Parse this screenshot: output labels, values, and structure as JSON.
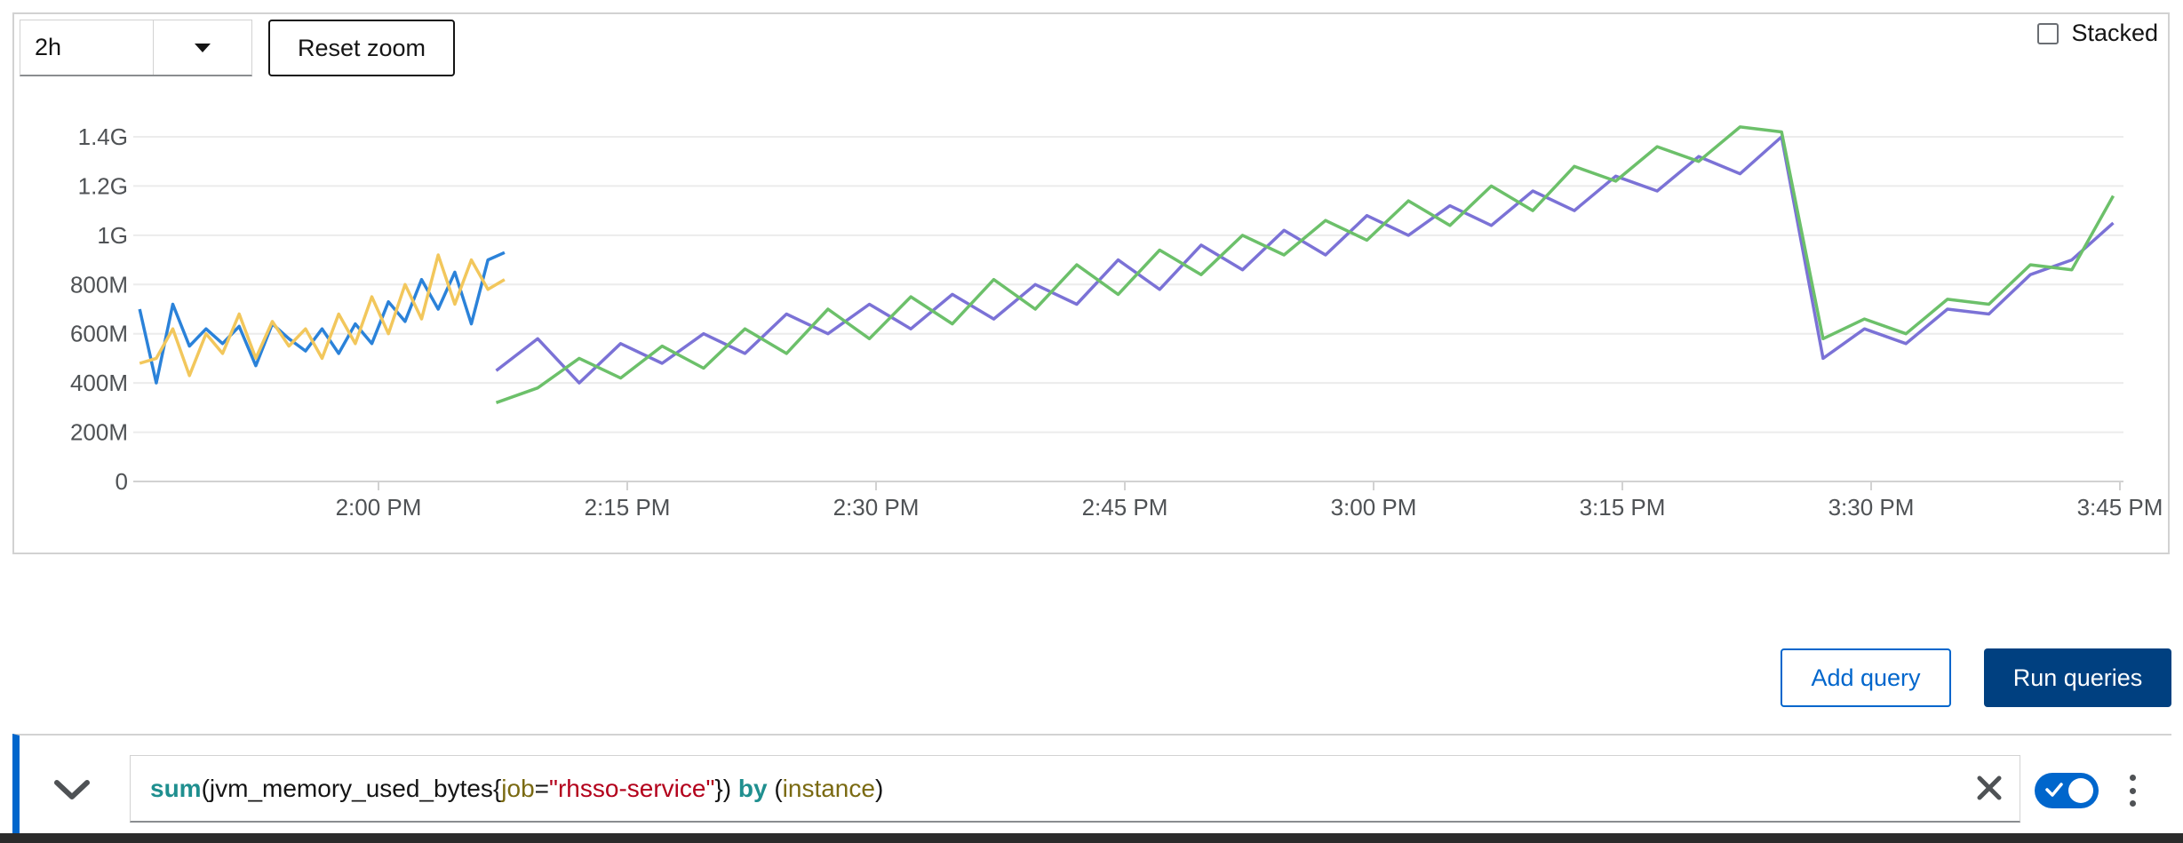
{
  "toolbar": {
    "range_value": "2h",
    "reset_zoom_label": "Reset zoom",
    "stacked_label": "Stacked",
    "stacked_checked": false
  },
  "actions": {
    "add_query_label": "Add query",
    "run_queries_label": "Run queries"
  },
  "query": {
    "fn": "sum",
    "open_paren": "(",
    "metric": "jvm_memory_used_bytes",
    "brace_open": "{",
    "label_key": "job",
    "equals": "=",
    "label_value": "\"rhsso-service\"",
    "brace_close": "})",
    "by_kw": " by ",
    "group_open": "(",
    "group_label": "instance",
    "group_close": ")",
    "enabled": true
  },
  "chart_data": {
    "type": "line",
    "x_unit": "clock time",
    "xlim": [
      "1:50 PM",
      "3:45 PM"
    ],
    "ylim": [
      0,
      1.5
    ],
    "y_unit": "G",
    "grid": true,
    "y_ticks": [
      {
        "value": 0,
        "label": "0"
      },
      {
        "value": 0.2,
        "label": "200M"
      },
      {
        "value": 0.4,
        "label": "400M"
      },
      {
        "value": 0.6,
        "label": "600M"
      },
      {
        "value": 0.8,
        "label": "800M"
      },
      {
        "value": 1.0,
        "label": "1G"
      },
      {
        "value": 1.2,
        "label": "1.2G"
      },
      {
        "value": 1.4,
        "label": "1.4G"
      }
    ],
    "x_ticks": [
      {
        "min": 0,
        "label": "2:00 PM"
      },
      {
        "min": 15,
        "label": "2:15 PM"
      },
      {
        "min": 30,
        "label": "2:30 PM"
      },
      {
        "min": 45,
        "label": "2:45 PM"
      },
      {
        "min": 60,
        "label": "3:00 PM"
      },
      {
        "min": 75,
        "label": "3:15 PM"
      },
      {
        "min": 90,
        "label": "3:30 PM"
      },
      {
        "min": 105,
        "label": "3:45 PM"
      }
    ],
    "series": [
      {
        "color": "#2b82d9",
        "x": [
          -14.4,
          -13.4,
          -12.4,
          -11.4,
          -10.4,
          -9.4,
          -8.4,
          -7.4,
          -6.4,
          -5.4,
          -4.4,
          -3.4,
          -2.4,
          -1.4,
          -0.4,
          0.6,
          1.6,
          2.6,
          3.6,
          4.6,
          5.6,
          6.6,
          7.6
        ],
        "y": [
          0.7,
          0.4,
          0.72,
          0.55,
          0.62,
          0.56,
          0.63,
          0.47,
          0.64,
          0.58,
          0.53,
          0.62,
          0.52,
          0.64,
          0.56,
          0.73,
          0.65,
          0.82,
          0.7,
          0.85,
          0.64,
          0.9,
          0.93
        ]
      },
      {
        "color": "#f2c75c",
        "x": [
          -14.4,
          -13.4,
          -12.4,
          -11.4,
          -10.4,
          -9.4,
          -8.4,
          -7.4,
          -6.4,
          -5.4,
          -4.4,
          -3.4,
          -2.4,
          -1.4,
          -0.4,
          0.6,
          1.6,
          2.6,
          3.6,
          4.6,
          5.6,
          6.6,
          7.6
        ],
        "y": [
          0.48,
          0.5,
          0.62,
          0.43,
          0.6,
          0.52,
          0.68,
          0.5,
          0.65,
          0.55,
          0.62,
          0.5,
          0.68,
          0.56,
          0.75,
          0.6,
          0.8,
          0.66,
          0.92,
          0.72,
          0.9,
          0.78,
          0.82
        ]
      },
      {
        "color": "#7b72d6",
        "x": [
          7.1,
          9.6,
          12.1,
          14.6,
          17.1,
          19.6,
          22.1,
          24.6,
          27.1,
          29.6,
          32.1,
          34.6,
          37.1,
          39.6,
          42.1,
          44.6,
          47.1,
          49.6,
          52.1,
          54.6,
          57.1,
          59.6,
          62.1,
          64.6,
          67.1,
          69.6,
          72.1,
          74.6,
          77.1,
          79.6,
          82.1,
          84.6,
          87.1,
          89.6,
          92.1,
          94.6,
          97.1,
          99.6,
          102.1,
          104.6
        ],
        "y": [
          0.45,
          0.58,
          0.4,
          0.56,
          0.48,
          0.6,
          0.52,
          0.68,
          0.6,
          0.72,
          0.62,
          0.76,
          0.66,
          0.8,
          0.72,
          0.9,
          0.78,
          0.96,
          0.86,
          1.02,
          0.92,
          1.08,
          1.0,
          1.12,
          1.04,
          1.18,
          1.1,
          1.24,
          1.18,
          1.32,
          1.25,
          1.4,
          0.5,
          0.62,
          0.56,
          0.7,
          0.68,
          0.84,
          0.9,
          1.05
        ]
      },
      {
        "color": "#6cc06a",
        "x": [
          7.1,
          9.6,
          12.1,
          14.6,
          17.1,
          19.6,
          22.1,
          24.6,
          27.1,
          29.6,
          32.1,
          34.6,
          37.1,
          39.6,
          42.1,
          44.6,
          47.1,
          49.6,
          52.1,
          54.6,
          57.1,
          59.6,
          62.1,
          64.6,
          67.1,
          69.6,
          72.1,
          74.6,
          77.1,
          79.6,
          82.1,
          84.6,
          87.1,
          89.6,
          92.1,
          94.6,
          97.1,
          99.6,
          102.1,
          104.6
        ],
        "y": [
          0.32,
          0.38,
          0.5,
          0.42,
          0.55,
          0.46,
          0.62,
          0.52,
          0.7,
          0.58,
          0.75,
          0.64,
          0.82,
          0.7,
          0.88,
          0.76,
          0.94,
          0.84,
          1.0,
          0.92,
          1.06,
          0.98,
          1.14,
          1.04,
          1.2,
          1.1,
          1.28,
          1.22,
          1.36,
          1.3,
          1.44,
          1.42,
          0.58,
          0.66,
          0.6,
          0.74,
          0.72,
          0.88,
          0.86,
          1.16
        ]
      }
    ]
  }
}
